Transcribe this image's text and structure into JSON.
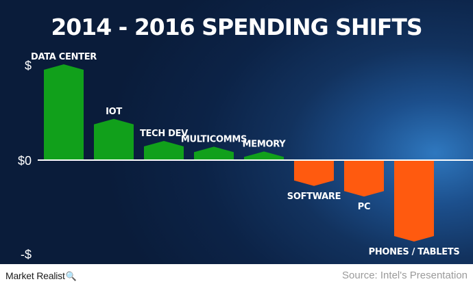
{
  "chart_data": {
    "type": "bar",
    "title": "2014 - 2016 SPENDING SHIFTS",
    "yticks": [
      "$",
      "$0",
      "-$"
    ],
    "categories": [
      "DATA CENTER",
      "IOT",
      "TECH DEV",
      "MULTICOMMS",
      "MEMORY",
      "SOFTWARE",
      "PC",
      "PHONES / TABLETS"
    ],
    "values": [
      100,
      43,
      20,
      14,
      9,
      -27,
      -38,
      -85
    ],
    "ylim": [
      -104,
      100
    ],
    "positive_color": "#11a01b",
    "negative_color": "#ff5a0f",
    "grid": false
  },
  "footer": {
    "brand": "Market Realist",
    "brand_icon": "magnifier-icon",
    "source": "Source: Intel's Presentation"
  }
}
